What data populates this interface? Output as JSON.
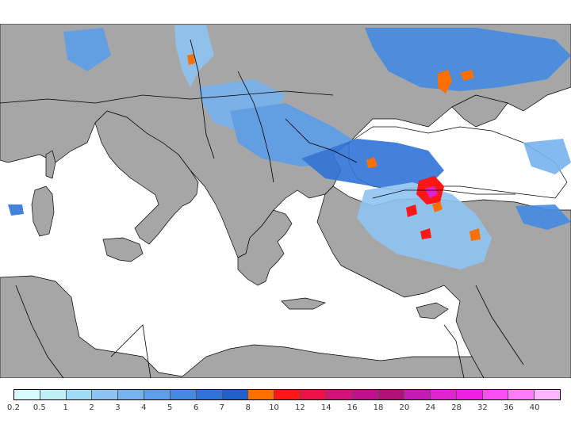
{
  "map": {
    "colors": {
      "land": "#a6a6a6",
      "sea": "#ffffff",
      "borders": "#000000"
    }
  },
  "legend": {
    "ticks": [
      "0.2",
      "0.5",
      "1",
      "2",
      "3",
      "4",
      "5",
      "6",
      "7",
      "8",
      "10",
      "12",
      "14",
      "16",
      "18",
      "20",
      "24",
      "28",
      "32",
      "36",
      "40"
    ],
    "colors": [
      "#d8fcfc",
      "#bff0f7",
      "#a0dcf4",
      "#8ec4f2",
      "#77b3ee",
      "#5c9ee9",
      "#4589e2",
      "#2f74d9",
      "#2060c8",
      "#ff6f00",
      "#ff1717",
      "#ee1047",
      "#d4107a",
      "#c0108b",
      "#b0127a",
      "#c51ab8",
      "#e022d0",
      "#f01fe6",
      "#f84ff2",
      "#fe7bfc",
      "#ffb5ff"
    ]
  }
}
